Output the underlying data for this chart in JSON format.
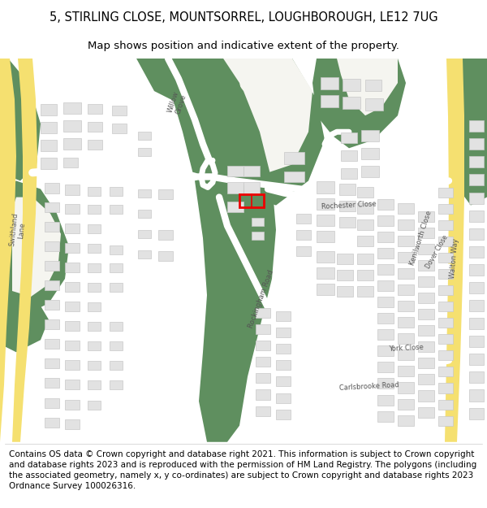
{
  "title_line1": "5, STIRLING CLOSE, MOUNTSORREL, LOUGHBOROUGH, LE12 7UG",
  "title_line2": "Map shows position and indicative extent of the property.",
  "footer_text": "Contains OS data © Crown copyright and database right 2021. This information is subject to Crown copyright and database rights 2023 and is reproduced with the permission of HM Land Registry. The polygons (including the associated geometry, namely x, y co-ordinates) are subject to Crown copyright and database rights 2023 Ordnance Survey 100026316.",
  "map_bg": "#f5f5f0",
  "green_dark": "#5f8f5f",
  "green_light": "#b8d4b0",
  "road_white": "#ffffff",
  "building_fill": "#e2e2e2",
  "building_edge": "#c8c8c8",
  "highlight_color": "#ee0000",
  "road_yellow_fill": "#f5e070",
  "road_yellow_edge": "#d4b820",
  "title_fontsize": 10.5,
  "subtitle_fontsize": 9.5,
  "footer_fontsize": 7.5,
  "label_color": "#555555",
  "label_fs": 6.0
}
